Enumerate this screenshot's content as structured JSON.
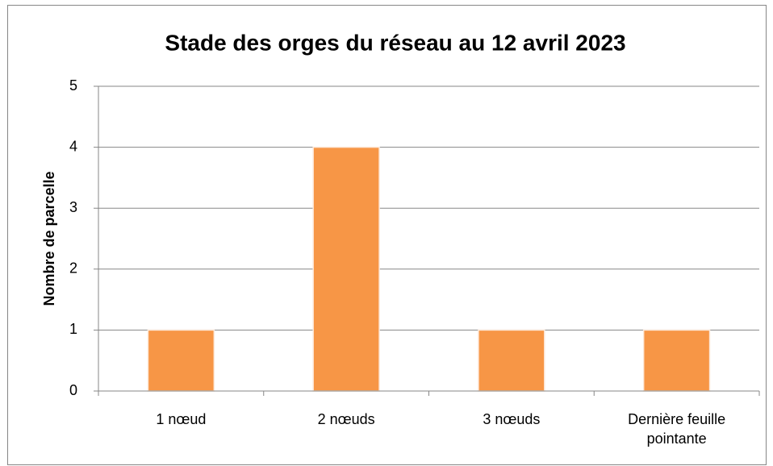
{
  "chart_data": {
    "type": "bar",
    "title": "Stade des orges du réseau au 12 avril 2023",
    "y_label": "Nombre de parcelle",
    "categories": [
      "1 nœud",
      "2 nœuds",
      "3 nœuds",
      "Dernière feuille pointante"
    ],
    "values": [
      1,
      4,
      1,
      1
    ],
    "color": "#f79646",
    "ylim": [
      0,
      5
    ],
    "yticks": [
      0,
      1,
      2,
      3,
      4,
      5
    ],
    "grid": true
  }
}
